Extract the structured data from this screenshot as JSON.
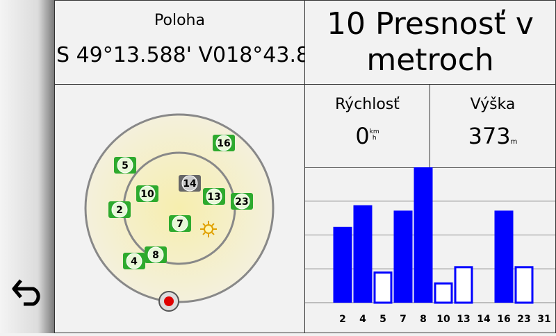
{
  "position": {
    "label": "Poloha",
    "value": "S 49°13.588' V018°43.8"
  },
  "accuracy": {
    "text": "10 Presnosť v metroch"
  },
  "speed": {
    "label": "Rýchlosť",
    "value": "0",
    "unit_top": "km",
    "unit_bottom": "h"
  },
  "elevation": {
    "label": "Výška",
    "value": "373",
    "unit": "m"
  },
  "sky": {
    "satellites": [
      "5",
      "16",
      "10",
      "14",
      "13",
      "23",
      "2",
      "7",
      "4",
      "8"
    ]
  },
  "chart_data": {
    "type": "bar",
    "categories": [
      "2",
      "4",
      "5",
      "7",
      "8",
      "10",
      "13",
      "14",
      "16",
      "23",
      "31"
    ],
    "values": [
      56,
      72,
      23,
      68,
      100,
      15,
      27,
      0,
      68,
      27,
      0
    ],
    "filled": [
      true,
      true,
      false,
      true,
      true,
      false,
      false,
      false,
      true,
      false,
      false
    ],
    "color": "#0000ff",
    "ylim": [
      0,
      100
    ],
    "yticks": [
      0,
      25,
      50,
      75,
      100
    ],
    "grid": true
  }
}
